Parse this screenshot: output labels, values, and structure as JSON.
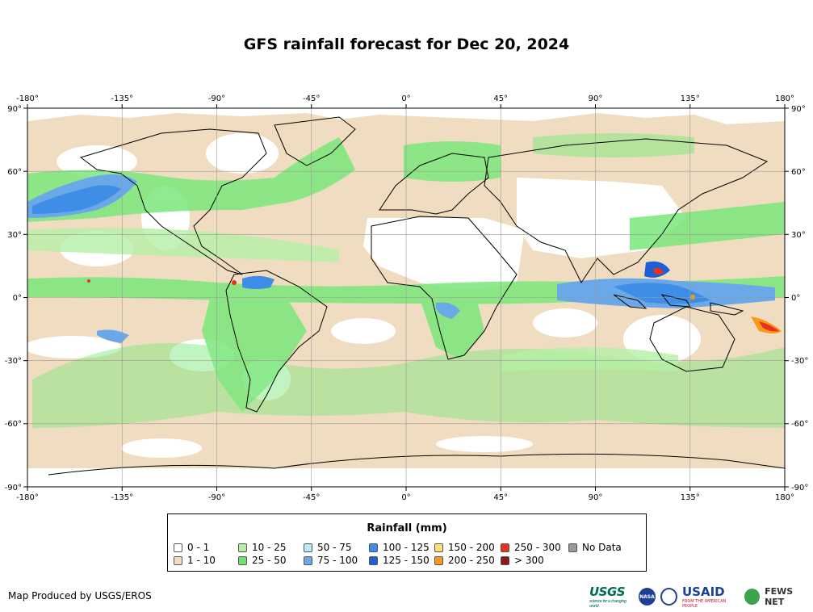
{
  "title": "GFS rainfall forecast for Dec 20, 2024",
  "map": {
    "lon_ticks": [
      "-180°",
      "-135°",
      "-90°",
      "-45°",
      "0°",
      "45°",
      "90°",
      "135°",
      "180°"
    ],
    "lat_ticks_left": [
      "90°",
      "60°",
      "30°",
      "0°",
      "-30°",
      "-60°",
      "-90°"
    ],
    "lat_ticks_right": [
      "90°",
      "60°",
      "30°",
      "0°",
      "-30°",
      "-60°",
      "-90°"
    ],
    "colors": {
      "ocean_base": "#f0dcc0",
      "low_rain": "#ffffff",
      "land_dry": "#ffffff",
      "rain_25_50": "#7be77b",
      "rain_10_25": "#b5f0a5",
      "rain_75_100": "#6aa8e8",
      "rain_125_150": "#1f5fd6",
      "rain_250_300": "#e8301c",
      "rain_200_250": "#f59a1a"
    }
  },
  "legend": {
    "title": "Rainfall (mm)",
    "items": [
      {
        "label": "0 - 1",
        "color": "#ffffff"
      },
      {
        "label": "1 - 10",
        "color": "#f0dcc0"
      },
      {
        "label": "10 - 25",
        "color": "#b5f0a5"
      },
      {
        "label": "25 - 50",
        "color": "#6ee36e"
      },
      {
        "label": "50 - 75",
        "color": "#b8ecf8"
      },
      {
        "label": "75 - 100",
        "color": "#6aa8e8"
      },
      {
        "label": "100 - 125",
        "color": "#3e8ee8"
      },
      {
        "label": "125 - 150",
        "color": "#1f5fd6"
      },
      {
        "label": "150 - 200",
        "color": "#f8e27a"
      },
      {
        "label": "200 - 250",
        "color": "#f59a1a"
      },
      {
        "label": "250 - 300",
        "color": "#e8301c"
      },
      {
        "label": "> 300",
        "color": "#8b1a1a"
      },
      {
        "label": "No Data",
        "color": "#999999"
      }
    ]
  },
  "footer": {
    "credit": "Map Produced by USGS/EROS",
    "logos": {
      "usgs": "USGS",
      "usgs_tagline": "science for a changing world",
      "nasa": "NASA",
      "usaid": "USAID",
      "usaid_tagline": "FROM THE AMERICAN PEOPLE",
      "fews": "FEWS NET"
    }
  }
}
